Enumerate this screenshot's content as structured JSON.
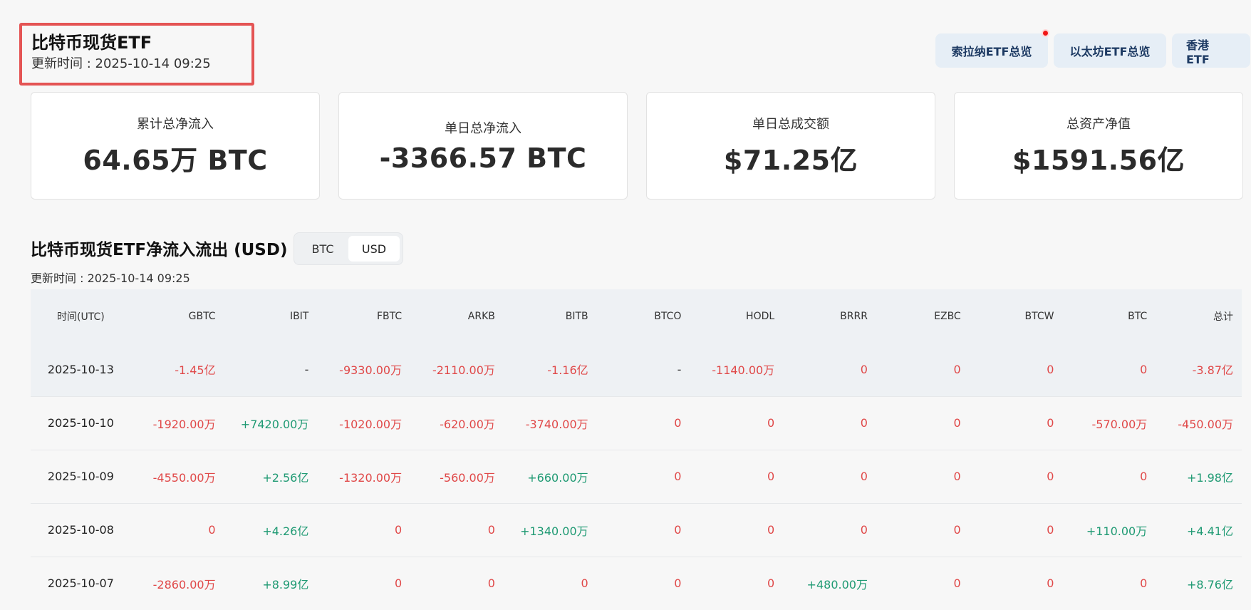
{
  "header": {
    "title": "比特币现货ETF",
    "update_time": "更新时间 : 2025-10-14 09:25"
  },
  "nav": {
    "buttons": [
      "索拉纳ETF总览",
      "以太坊ETF总览",
      "香港 ETF"
    ]
  },
  "colors": {
    "negative": "#e04848",
    "positive": "#1f9a73",
    "highlight_border": "#e45454",
    "nav_button_bg": "#e6eef6",
    "notification_dot": "#f01616"
  },
  "cards": [
    {
      "label": "累计总净流入",
      "value": "64.65万 BTC"
    },
    {
      "label": "单日总净流入",
      "value": "-3366.57 BTC"
    },
    {
      "label": "单日总成交额",
      "value": "$71.25亿"
    },
    {
      "label": "总资产净值",
      "value": "$1591.56亿"
    }
  ],
  "section": {
    "title": "比特币现货ETF净流入流出 (USD)",
    "toggle_options": [
      "BTC",
      "USD"
    ],
    "toggle_selected": "USD",
    "update_time": "更新时间 : 2025-10-14 09:25"
  },
  "table": {
    "columns": [
      "时间(UTC)",
      "GBTC",
      "IBIT",
      "FBTC",
      "ARKB",
      "BITB",
      "BTCO",
      "HODL",
      "BRRR",
      "EZBC",
      "BTCW",
      "BTC",
      "总计"
    ],
    "rows": [
      [
        "2025-10-13",
        "-1.45亿",
        "-",
        "-9330.00万",
        "-2110.00万",
        "-1.16亿",
        "-",
        "-1140.00万",
        "0",
        "0",
        "0",
        "0",
        "-3.87亿"
      ],
      [
        "2025-10-10",
        "-1920.00万",
        "+7420.00万",
        "-1020.00万",
        "-620.00万",
        "-3740.00万",
        "0",
        "0",
        "0",
        "0",
        "0",
        "-570.00万",
        "-450.00万"
      ],
      [
        "2025-10-09",
        "-4550.00万",
        "+2.56亿",
        "-1320.00万",
        "-560.00万",
        "+660.00万",
        "0",
        "0",
        "0",
        "0",
        "0",
        "0",
        "+1.98亿"
      ],
      [
        "2025-10-08",
        "0",
        "+4.26亿",
        "0",
        "0",
        "+1340.00万",
        "0",
        "0",
        "0",
        "0",
        "0",
        "+110.00万",
        "+4.41亿"
      ],
      [
        "2025-10-07",
        "-2860.00万",
        "+8.99亿",
        "0",
        "0",
        "0",
        "0",
        "0",
        "+480.00万",
        "0",
        "0",
        "0",
        "+8.76亿"
      ]
    ]
  }
}
